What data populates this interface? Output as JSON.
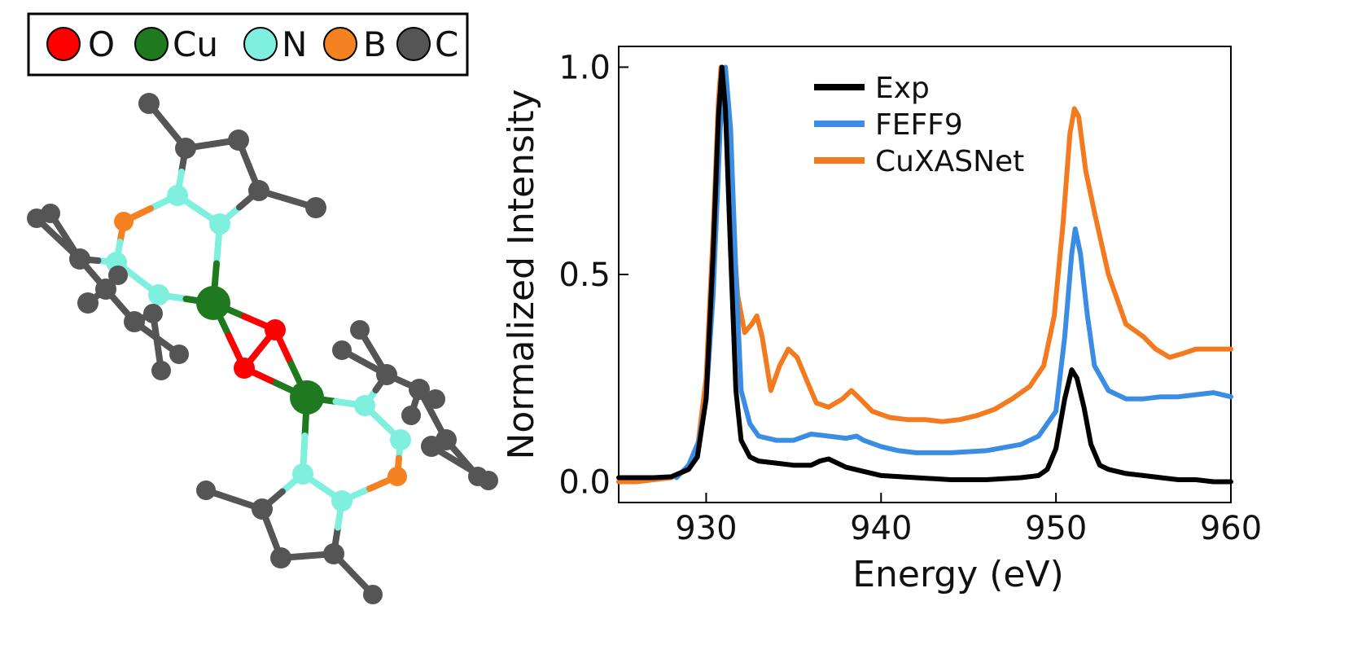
{
  "legend_atoms": [
    {
      "symbol": "O",
      "color": "#ff0000"
    },
    {
      "symbol": "Cu",
      "color": "#1f7a1f"
    },
    {
      "symbol": "N",
      "color": "#7ff0de"
    },
    {
      "symbol": "B",
      "color": "#f58220"
    },
    {
      "symbol": "C",
      "color": "#555555"
    }
  ],
  "chart_data": {
    "type": "line",
    "title": "",
    "xlabel": "Energy (eV)",
    "ylabel": "Normalized Intensity",
    "xlim": [
      925,
      960
    ],
    "ylim": [
      -0.05,
      1.05
    ],
    "xticks": [
      930,
      940,
      950,
      960
    ],
    "yticks": [
      0.0,
      0.5,
      1.0
    ],
    "xtick_labels": [
      "930",
      "940",
      "950",
      "960"
    ],
    "ytick_labels": [
      "0.0",
      "0.5",
      "1.0"
    ],
    "grid": false,
    "legend_position": "top-center",
    "series": [
      {
        "name": "Exp",
        "color": "#000000",
        "points": [
          [
            925,
            0.01
          ],
          [
            926,
            0.01
          ],
          [
            927,
            0.01
          ],
          [
            928,
            0.012
          ],
          [
            929,
            0.03
          ],
          [
            929.5,
            0.06
          ],
          [
            930,
            0.2
          ],
          [
            930.4,
            0.55
          ],
          [
            930.7,
            0.88
          ],
          [
            930.9,
            1.0
          ],
          [
            931.1,
            0.9
          ],
          [
            931.4,
            0.55
          ],
          [
            931.7,
            0.22
          ],
          [
            932,
            0.1
          ],
          [
            932.5,
            0.06
          ],
          [
            933,
            0.05
          ],
          [
            934,
            0.045
          ],
          [
            935,
            0.04
          ],
          [
            936,
            0.04
          ],
          [
            936.5,
            0.05
          ],
          [
            937,
            0.055
          ],
          [
            937.5,
            0.045
          ],
          [
            938,
            0.035
          ],
          [
            939,
            0.025
          ],
          [
            940,
            0.015
          ],
          [
            942,
            0.01
          ],
          [
            944,
            0.005
          ],
          [
            946,
            0.005
          ],
          [
            948,
            0.01
          ],
          [
            949,
            0.015
          ],
          [
            949.5,
            0.03
          ],
          [
            950,
            0.08
          ],
          [
            950.5,
            0.2
          ],
          [
            950.9,
            0.27
          ],
          [
            951.2,
            0.25
          ],
          [
            951.6,
            0.18
          ],
          [
            952,
            0.09
          ],
          [
            952.5,
            0.04
          ],
          [
            953,
            0.03
          ],
          [
            954,
            0.02
          ],
          [
            955,
            0.015
          ],
          [
            956,
            0.01
          ],
          [
            957,
            0.005
          ],
          [
            958,
            0.005
          ],
          [
            959,
            0.0
          ],
          [
            960,
            0.0
          ]
        ]
      },
      {
        "name": "FEFF9",
        "color": "#3b8de3",
        "points": [
          [
            928.3,
            0.01
          ],
          [
            929,
            0.04
          ],
          [
            929.6,
            0.1
          ],
          [
            930,
            0.2
          ],
          [
            930.4,
            0.45
          ],
          [
            930.8,
            0.85
          ],
          [
            931.1,
            1.0
          ],
          [
            931.4,
            0.85
          ],
          [
            931.7,
            0.5
          ],
          [
            932,
            0.22
          ],
          [
            932.5,
            0.14
          ],
          [
            933,
            0.11
          ],
          [
            934,
            0.1
          ],
          [
            935,
            0.1
          ],
          [
            936,
            0.115
          ],
          [
            937,
            0.11
          ],
          [
            938,
            0.105
          ],
          [
            938.6,
            0.11
          ],
          [
            939,
            0.1
          ],
          [
            940,
            0.085
          ],
          [
            941,
            0.075
          ],
          [
            942,
            0.07
          ],
          [
            944,
            0.07
          ],
          [
            946,
            0.075
          ],
          [
            948,
            0.09
          ],
          [
            949,
            0.11
          ],
          [
            950,
            0.17
          ],
          [
            950.5,
            0.35
          ],
          [
            950.9,
            0.55
          ],
          [
            951.1,
            0.61
          ],
          [
            951.4,
            0.55
          ],
          [
            951.8,
            0.4
          ],
          [
            952.2,
            0.28
          ],
          [
            953,
            0.22
          ],
          [
            954,
            0.2
          ],
          [
            955,
            0.2
          ],
          [
            956,
            0.205
          ],
          [
            957,
            0.205
          ],
          [
            958,
            0.21
          ],
          [
            959,
            0.215
          ],
          [
            960,
            0.205
          ]
        ]
      },
      {
        "name": "CuXASNet",
        "color": "#f47a1f",
        "points": [
          [
            925,
            0.0
          ],
          [
            926,
            0.0
          ],
          [
            927,
            0.005
          ],
          [
            928,
            0.01
          ],
          [
            929,
            0.03
          ],
          [
            929.5,
            0.08
          ],
          [
            930,
            0.25
          ],
          [
            930.4,
            0.6
          ],
          [
            930.7,
            0.92
          ],
          [
            930.85,
            1.0
          ],
          [
            931.1,
            0.9
          ],
          [
            931.4,
            0.7
          ],
          [
            931.8,
            0.45
          ],
          [
            932.2,
            0.36
          ],
          [
            932.6,
            0.38
          ],
          [
            932.9,
            0.4
          ],
          [
            933.2,
            0.35
          ],
          [
            933.7,
            0.22
          ],
          [
            934.2,
            0.28
          ],
          [
            934.7,
            0.32
          ],
          [
            935.2,
            0.3
          ],
          [
            935.8,
            0.24
          ],
          [
            936.3,
            0.19
          ],
          [
            937,
            0.18
          ],
          [
            937.8,
            0.2
          ],
          [
            938.3,
            0.22
          ],
          [
            938.8,
            0.2
          ],
          [
            939.5,
            0.17
          ],
          [
            940.5,
            0.155
          ],
          [
            941.5,
            0.15
          ],
          [
            942.5,
            0.15
          ],
          [
            943.5,
            0.145
          ],
          [
            944.5,
            0.15
          ],
          [
            945.5,
            0.16
          ],
          [
            946.5,
            0.175
          ],
          [
            947.5,
            0.2
          ],
          [
            948.5,
            0.23
          ],
          [
            949.3,
            0.28
          ],
          [
            949.9,
            0.4
          ],
          [
            950.4,
            0.62
          ],
          [
            950.8,
            0.84
          ],
          [
            951.05,
            0.9
          ],
          [
            951.3,
            0.88
          ],
          [
            951.7,
            0.75
          ],
          [
            952.2,
            0.65
          ],
          [
            953,
            0.5
          ],
          [
            954,
            0.38
          ],
          [
            955,
            0.35
          ],
          [
            955.7,
            0.32
          ],
          [
            956.5,
            0.3
          ],
          [
            957.3,
            0.31
          ],
          [
            958,
            0.32
          ],
          [
            959,
            0.32
          ],
          [
            960,
            0.32
          ]
        ]
      }
    ]
  }
}
